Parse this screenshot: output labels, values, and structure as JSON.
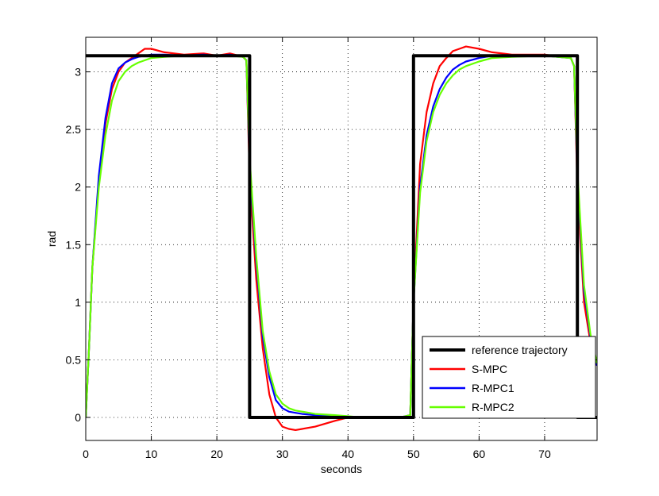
{
  "chart_data": {
    "type": "line",
    "title": "",
    "xlabel": "seconds",
    "ylabel": "rad",
    "xlim": [
      0,
      78
    ],
    "ylim": [
      -0.2,
      3.3
    ],
    "xticks": [
      0,
      10,
      20,
      30,
      40,
      50,
      60,
      70
    ],
    "yticks": [
      0,
      0.5,
      1,
      1.5,
      2,
      2.5,
      3
    ],
    "xtick_labels": [
      "0",
      "10",
      "20",
      "30",
      "40",
      "50",
      "60",
      "70"
    ],
    "ytick_labels": [
      "0",
      "0.5",
      "1",
      "1.5",
      "2",
      "2.5",
      "3"
    ],
    "grid": true,
    "legend_position": "bottom-right",
    "series": [
      {
        "name": "reference trajectory",
        "color": "#000000",
        "x": [
          0,
          25,
          25,
          50,
          50,
          75,
          75,
          78
        ],
        "y": [
          3.14,
          3.14,
          0,
          0,
          3.14,
          3.14,
          0,
          0
        ]
      },
      {
        "name": "S-MPC",
        "color": "#ff0000",
        "x": [
          0,
          0.5,
          1,
          2,
          3,
          4,
          5,
          6,
          7,
          8,
          9,
          10,
          12,
          15,
          18,
          20,
          22,
          24,
          24.5,
          25,
          26,
          27,
          28,
          29,
          30,
          31,
          32,
          33,
          35,
          38,
          40,
          42,
          45,
          48,
          49.5,
          50,
          51,
          52,
          53,
          54,
          55,
          56,
          57,
          58,
          60,
          62,
          65,
          70,
          74,
          74.5,
          75,
          76,
          77,
          78
        ],
        "y": [
          0,
          0.6,
          1.3,
          2.05,
          2.55,
          2.85,
          3.0,
          3.08,
          3.12,
          3.16,
          3.2,
          3.2,
          3.17,
          3.15,
          3.16,
          3.14,
          3.16,
          3.13,
          3.1,
          2.1,
          1.2,
          0.6,
          0.2,
          0.0,
          -0.08,
          -0.1,
          -0.11,
          -0.1,
          -0.08,
          -0.03,
          0.0,
          0.0,
          0.0,
          0.0,
          0.02,
          1.0,
          2.2,
          2.65,
          2.9,
          3.05,
          3.12,
          3.18,
          3.2,
          3.22,
          3.2,
          3.17,
          3.15,
          3.15,
          3.12,
          3.05,
          2.0,
          1.0,
          0.65,
          0.45
        ]
      },
      {
        "name": "R-MPC1",
        "color": "#0000ff",
        "x": [
          0,
          0.5,
          1,
          2,
          3,
          4,
          5,
          6,
          7,
          8,
          9,
          10,
          12,
          15,
          18,
          20,
          22,
          24,
          24.5,
          25,
          26,
          27,
          28,
          29,
          30,
          31,
          32,
          33,
          35,
          38,
          40,
          42,
          45,
          48,
          49.5,
          50,
          51,
          52,
          53,
          54,
          55,
          56,
          57,
          58,
          60,
          62,
          65,
          70,
          74,
          74.5,
          75,
          76,
          77,
          78
        ],
        "y": [
          0,
          0.6,
          1.3,
          2.1,
          2.6,
          2.9,
          3.03,
          3.08,
          3.11,
          3.13,
          3.14,
          3.15,
          3.15,
          3.14,
          3.15,
          3.14,
          3.15,
          3.13,
          3.1,
          2.2,
          1.35,
          0.7,
          0.35,
          0.15,
          0.08,
          0.05,
          0.04,
          0.03,
          0.02,
          0.01,
          0.0,
          0.0,
          0.0,
          0.0,
          0.02,
          1.0,
          2.0,
          2.45,
          2.7,
          2.85,
          2.95,
          3.02,
          3.06,
          3.09,
          3.12,
          3.14,
          3.14,
          3.14,
          3.12,
          3.05,
          2.1,
          1.1,
          0.7,
          0.45
        ]
      },
      {
        "name": "R-MPC2",
        "color": "#66ff00",
        "x": [
          0,
          0.5,
          1,
          2,
          3,
          4,
          5,
          6,
          7,
          8,
          9,
          10,
          12,
          15,
          18,
          20,
          22,
          24,
          24.5,
          25,
          26,
          27,
          28,
          29,
          30,
          31,
          32,
          33,
          35,
          38,
          40,
          42,
          45,
          48,
          49.5,
          50,
          51,
          52,
          53,
          54,
          55,
          56,
          57,
          58,
          60,
          62,
          65,
          70,
          74,
          74.5,
          75,
          76,
          77,
          78
        ],
        "y": [
          0,
          0.6,
          1.3,
          2.0,
          2.45,
          2.75,
          2.92,
          3.0,
          3.05,
          3.08,
          3.1,
          3.12,
          3.13,
          3.14,
          3.14,
          3.14,
          3.14,
          3.13,
          3.1,
          2.25,
          1.4,
          0.75,
          0.4,
          0.2,
          0.12,
          0.08,
          0.06,
          0.05,
          0.03,
          0.02,
          0.01,
          0.0,
          0.0,
          0.0,
          0.02,
          1.0,
          1.95,
          2.4,
          2.65,
          2.8,
          2.9,
          2.97,
          3.02,
          3.05,
          3.09,
          3.12,
          3.13,
          3.14,
          3.12,
          3.05,
          2.15,
          1.15,
          0.72,
          0.47
        ]
      }
    ]
  }
}
